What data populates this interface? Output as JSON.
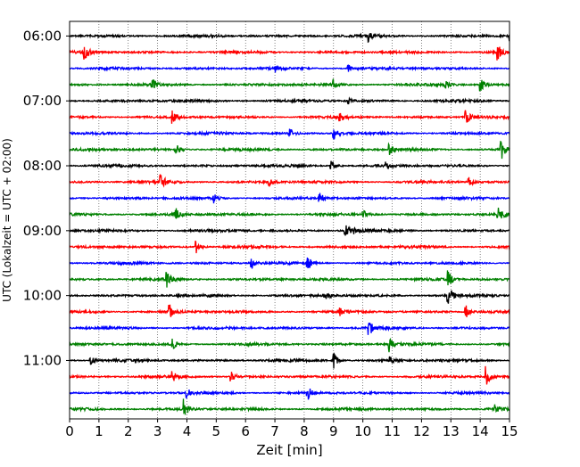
{
  "chart_data": {
    "type": "line",
    "subtype": "helicorder",
    "xlabel": "Zeit  [min]",
    "ylabel": "UTC (Lokalzeit = UTC + 02:00)",
    "xlim": [
      0,
      15
    ],
    "x_ticks": [
      "0",
      "1",
      "2",
      "3",
      "4",
      "5",
      "6",
      "7",
      "8",
      "9",
      "10",
      "11",
      "12",
      "13",
      "14",
      "15"
    ],
    "y_ticks": [
      "06:00",
      "07:00",
      "08:00",
      "09:00",
      "10:00",
      "11:00"
    ],
    "traces_per_hour": 4,
    "minutes_per_trace": 15,
    "colors": [
      "#000000",
      "#ff0000",
      "#0000ff",
      "#008000"
    ],
    "grid": {
      "x": true,
      "style": "dotted"
    },
    "traces": [
      {
        "start": "06:00",
        "events": [
          [
            10.2,
            0.5
          ],
          [
            15.0,
            0.5
          ]
        ]
      },
      {
        "start": "06:15",
        "events": [
          [
            0.5,
            0.9
          ],
          [
            14.6,
            0.8
          ]
        ]
      },
      {
        "start": "06:30",
        "events": [
          [
            7.0,
            0.4
          ],
          [
            9.5,
            0.4
          ]
        ]
      },
      {
        "start": "06:45",
        "events": [
          [
            2.8,
            1.0
          ],
          [
            9.0,
            0.5
          ],
          [
            12.8,
            0.4
          ],
          [
            14.0,
            0.9
          ]
        ]
      },
      {
        "start": "07:00",
        "events": [
          [
            9.5,
            0.3
          ]
        ]
      },
      {
        "start": "07:15",
        "events": [
          [
            3.5,
            0.8
          ],
          [
            9.2,
            0.5
          ],
          [
            13.5,
            0.9
          ]
        ]
      },
      {
        "start": "07:30",
        "events": [
          [
            7.5,
            0.6
          ],
          [
            9.0,
            0.9
          ]
        ]
      },
      {
        "start": "07:45",
        "events": [
          [
            3.6,
            0.8
          ],
          [
            10.9,
            0.5
          ],
          [
            14.7,
            1.2
          ]
        ]
      },
      {
        "start": "08:00",
        "events": [
          [
            8.9,
            0.9
          ],
          [
            10.8,
            0.3
          ]
        ]
      },
      {
        "start": "08:15",
        "events": [
          [
            3.1,
            0.9
          ],
          [
            6.8,
            0.5
          ],
          [
            13.6,
            0.7
          ]
        ]
      },
      {
        "start": "08:30",
        "events": [
          [
            4.9,
            0.5
          ],
          [
            8.5,
            0.7
          ]
        ]
      },
      {
        "start": "08:45",
        "events": [
          [
            3.6,
            0.8
          ],
          [
            10.0,
            0.5
          ],
          [
            14.6,
            0.9
          ]
        ]
      },
      {
        "start": "09:00",
        "events": [
          [
            9.4,
            0.8
          ],
          [
            9.7,
            0.4
          ]
        ]
      },
      {
        "start": "09:15",
        "events": [
          [
            4.3,
            0.9
          ]
        ]
      },
      {
        "start": "09:30",
        "events": [
          [
            6.2,
            0.6
          ],
          [
            8.1,
            1.0
          ]
        ]
      },
      {
        "start": "09:45",
        "events": [
          [
            3.3,
            0.8
          ],
          [
            12.9,
            0.9
          ]
        ]
      },
      {
        "start": "10:00",
        "events": [
          [
            8.7,
            0.6
          ],
          [
            12.9,
            1.3
          ]
        ]
      },
      {
        "start": "10:15",
        "events": [
          [
            3.4,
            0.9
          ],
          [
            9.2,
            0.5
          ],
          [
            13.5,
            0.8
          ]
        ]
      },
      {
        "start": "10:30",
        "events": [
          [
            10.2,
            0.9
          ]
        ]
      },
      {
        "start": "10:45",
        "events": [
          [
            3.5,
            0.6
          ],
          [
            10.9,
            0.8
          ]
        ]
      },
      {
        "start": "11:00",
        "events": [
          [
            0.7,
            0.7
          ],
          [
            9.0,
            0.9
          ],
          [
            10.9,
            0.4
          ]
        ]
      },
      {
        "start": "11:15",
        "events": [
          [
            3.5,
            0.6
          ],
          [
            5.5,
            0.7
          ],
          [
            14.2,
            1.0
          ]
        ]
      },
      {
        "start": "11:30",
        "events": [
          [
            4.0,
            0.5
          ],
          [
            8.1,
            0.8
          ]
        ]
      },
      {
        "start": "11:45",
        "events": [
          [
            3.9,
            1.1
          ],
          [
            14.5,
            0.6
          ]
        ]
      }
    ]
  }
}
